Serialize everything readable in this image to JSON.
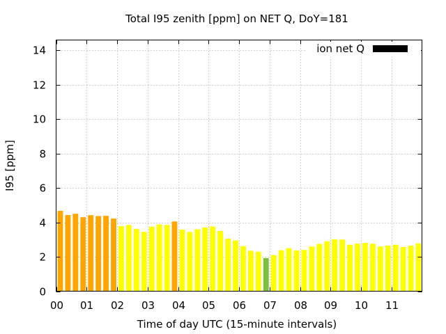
{
  "chart_data": {
    "type": "bar",
    "title": "Total I95 zenith [ppm] on NET Q, DoY=181",
    "xlabel": "Time of day UTC (15-minute intervals)",
    "ylabel": "I95 [ppm]",
    "ylim": [
      0,
      14.6
    ],
    "yticks": [
      0,
      2,
      4,
      6,
      8,
      10,
      12,
      14
    ],
    "xlim": [
      0,
      12
    ],
    "xticks": [
      {
        "value": 0,
        "label": "00"
      },
      {
        "value": 1,
        "label": "01"
      },
      {
        "value": 2,
        "label": "02"
      },
      {
        "value": 3,
        "label": "03"
      },
      {
        "value": 4,
        "label": "04"
      },
      {
        "value": 5,
        "label": "05"
      },
      {
        "value": 6,
        "label": "06"
      },
      {
        "value": 7,
        "label": "07"
      },
      {
        "value": 8,
        "label": "08"
      },
      {
        "value": 9,
        "label": "09"
      },
      {
        "value": 10,
        "label": "10"
      },
      {
        "value": 11,
        "label": "11"
      }
    ],
    "grid": true,
    "legend": {
      "label": "ion net Q",
      "color": "#000000",
      "position": "top-right"
    },
    "bar_interval_hours": 0.25,
    "colors": {
      "orange": "#ffa500",
      "yellow": "#ffff00",
      "green": "#7cbf3c"
    },
    "bars": [
      {
        "x": 0.0,
        "value": 4.67,
        "color": "orange"
      },
      {
        "x": 0.25,
        "value": 4.43,
        "color": "orange"
      },
      {
        "x": 0.5,
        "value": 4.5,
        "color": "orange"
      },
      {
        "x": 0.75,
        "value": 4.3,
        "color": "orange"
      },
      {
        "x": 1.0,
        "value": 4.42,
        "color": "orange"
      },
      {
        "x": 1.25,
        "value": 4.37,
        "color": "orange"
      },
      {
        "x": 1.5,
        "value": 4.38,
        "color": "orange"
      },
      {
        "x": 1.75,
        "value": 4.22,
        "color": "orange"
      },
      {
        "x": 2.0,
        "value": 3.78,
        "color": "yellow"
      },
      {
        "x": 2.25,
        "value": 3.85,
        "color": "yellow"
      },
      {
        "x": 2.5,
        "value": 3.62,
        "color": "yellow"
      },
      {
        "x": 2.75,
        "value": 3.45,
        "color": "yellow"
      },
      {
        "x": 3.0,
        "value": 3.75,
        "color": "yellow"
      },
      {
        "x": 3.25,
        "value": 3.88,
        "color": "yellow"
      },
      {
        "x": 3.5,
        "value": 3.85,
        "color": "yellow"
      },
      {
        "x": 3.75,
        "value": 4.05,
        "color": "orange"
      },
      {
        "x": 4.0,
        "value": 3.58,
        "color": "yellow"
      },
      {
        "x": 4.25,
        "value": 3.45,
        "color": "yellow"
      },
      {
        "x": 4.5,
        "value": 3.6,
        "color": "yellow"
      },
      {
        "x": 4.75,
        "value": 3.7,
        "color": "yellow"
      },
      {
        "x": 5.0,
        "value": 3.76,
        "color": "yellow"
      },
      {
        "x": 5.25,
        "value": 3.5,
        "color": "yellow"
      },
      {
        "x": 5.5,
        "value": 3.05,
        "color": "yellow"
      },
      {
        "x": 5.75,
        "value": 2.95,
        "color": "yellow"
      },
      {
        "x": 6.0,
        "value": 2.62,
        "color": "yellow"
      },
      {
        "x": 6.25,
        "value": 2.35,
        "color": "yellow"
      },
      {
        "x": 6.5,
        "value": 2.3,
        "color": "yellow"
      },
      {
        "x": 6.75,
        "value": 1.92,
        "color": "green"
      },
      {
        "x": 7.0,
        "value": 2.1,
        "color": "yellow"
      },
      {
        "x": 7.25,
        "value": 2.38,
        "color": "yellow"
      },
      {
        "x": 7.5,
        "value": 2.5,
        "color": "yellow"
      },
      {
        "x": 7.75,
        "value": 2.37,
        "color": "yellow"
      },
      {
        "x": 8.0,
        "value": 2.4,
        "color": "yellow"
      },
      {
        "x": 8.25,
        "value": 2.6,
        "color": "yellow"
      },
      {
        "x": 8.5,
        "value": 2.75,
        "color": "yellow"
      },
      {
        "x": 8.75,
        "value": 2.9,
        "color": "yellow"
      },
      {
        "x": 9.0,
        "value": 3.02,
        "color": "yellow"
      },
      {
        "x": 9.25,
        "value": 3.0,
        "color": "yellow"
      },
      {
        "x": 9.5,
        "value": 2.7,
        "color": "yellow"
      },
      {
        "x": 9.75,
        "value": 2.77,
        "color": "yellow"
      },
      {
        "x": 10.0,
        "value": 2.8,
        "color": "yellow"
      },
      {
        "x": 10.25,
        "value": 2.76,
        "color": "yellow"
      },
      {
        "x": 10.5,
        "value": 2.6,
        "color": "yellow"
      },
      {
        "x": 10.75,
        "value": 2.65,
        "color": "yellow"
      },
      {
        "x": 11.0,
        "value": 2.7,
        "color": "yellow"
      },
      {
        "x": 11.25,
        "value": 2.57,
        "color": "yellow"
      },
      {
        "x": 11.5,
        "value": 2.65,
        "color": "yellow"
      },
      {
        "x": 11.75,
        "value": 2.78,
        "color": "yellow"
      }
    ]
  }
}
